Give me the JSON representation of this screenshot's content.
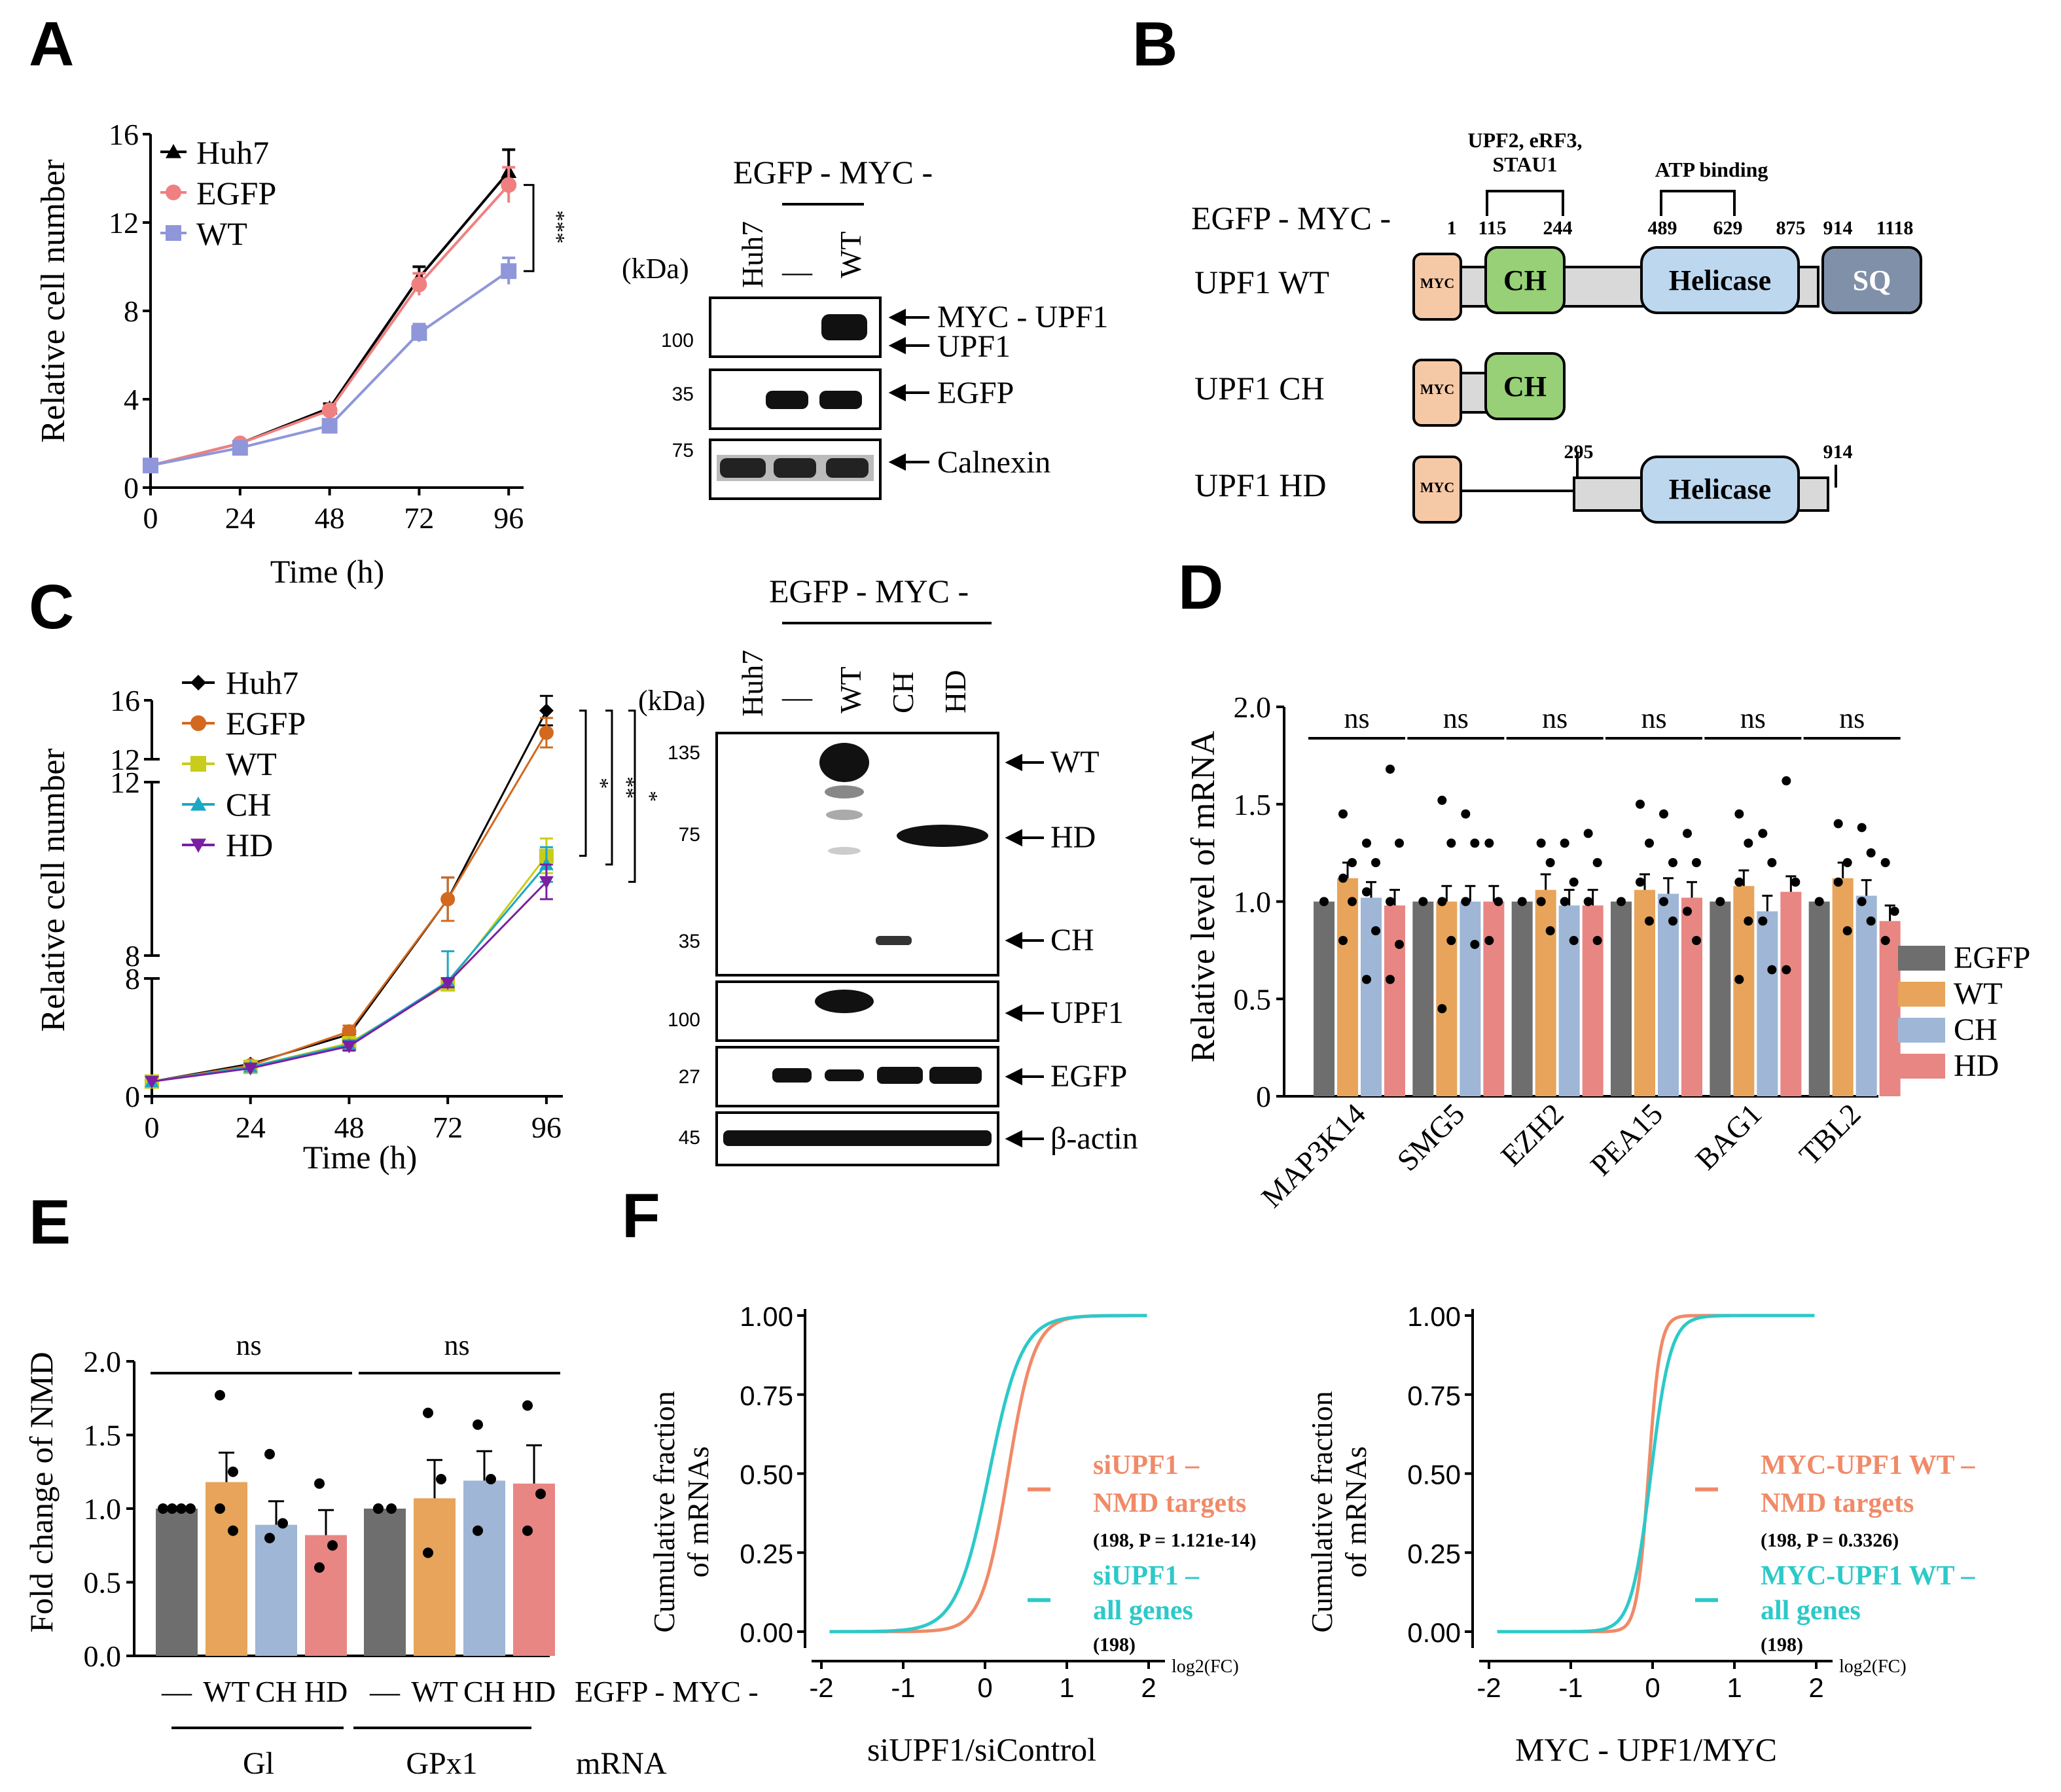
{
  "figure": {
    "panel_labels": [
      "A",
      "B",
      "C",
      "D",
      "E",
      "F"
    ]
  },
  "colors": {
    "huh7": "#000000",
    "egfp_a": "#f08080",
    "wt_a": "#8f96d9",
    "egfp_c": "#d2691e",
    "wt_c": "#c8cc1a",
    "ch_c": "#1ba8c4",
    "hd_c": "#7b1fa2",
    "bar_egfp": "#6e6e6e",
    "bar_wt": "#e7a45a",
    "bar_ch": "#9fb6d6",
    "bar_hd": "#e88683",
    "myc": "#f6c9a6",
    "ch_domain": "#97d077",
    "helicase": "#bdd7ee",
    "sq": "#8090a8",
    "salmon": "#f08a68",
    "cyan": "#2cc9c9"
  },
  "panelA": {
    "blot": {
      "header": "EGFP - MYC -",
      "lanes": [
        "Huh7",
        "—",
        "WT"
      ],
      "kda_label": "(kDa)",
      "rows": [
        {
          "marker": "100",
          "labels": [
            "MYC - UPF1",
            "UPF1"
          ]
        },
        {
          "marker": "35",
          "labels": [
            "EGFP"
          ]
        },
        {
          "marker": "75",
          "labels": [
            "Calnexin"
          ]
        }
      ]
    }
  },
  "panelB": {
    "construct_prefix": "EGFP - MYC -",
    "bracket1": "UPF2, eRF3,",
    "bracket1b": "STAU1",
    "bracket2": "ATP binding",
    "positions": [
      "1",
      "115",
      "244",
      "489",
      "629",
      "875",
      "914",
      "1118"
    ],
    "hd_positions": [
      "295",
      "914"
    ],
    "constructs": [
      "UPF1 WT",
      "UPF1 CH",
      "UPF1 HD"
    ],
    "domains": {
      "myc": "MYC",
      "ch": "CH",
      "helicase": "Helicase",
      "sq": "SQ"
    }
  },
  "panelC": {
    "blot": {
      "header": "EGFP - MYC -",
      "lanes": [
        "Huh7",
        "—",
        "WT",
        "CH",
        "HD"
      ],
      "kda_label": "(kDa)",
      "markers": [
        "135",
        "75",
        "35",
        "100",
        "27",
        "45"
      ],
      "labels": [
        "WT",
        "HD",
        "CH",
        "UPF1",
        "EGFP",
        "β-actin"
      ]
    }
  },
  "panelE": {
    "row_label": "EGFP - MYC -",
    "groups": [
      "Gl",
      "GPx1"
    ],
    "mrna_label": "mRNA",
    "lane_labels": [
      "—",
      "WT",
      "CH",
      "HD",
      "—",
      "WT",
      "CH",
      "HD"
    ]
  },
  "chart_data": [
    {
      "id": "A",
      "type": "line",
      "ylabel": "Relative cell number",
      "xlabel": "Time (h)",
      "x": [
        0,
        24,
        48,
        72,
        96
      ],
      "xlim": [
        0,
        100
      ],
      "ylim": [
        0,
        16
      ],
      "yticks": [
        0,
        4,
        8,
        12,
        16
      ],
      "series": [
        {
          "name": "Huh7",
          "values": [
            1.0,
            2.0,
            3.6,
            9.5,
            14.3
          ],
          "err": [
            0.1,
            0.1,
            0.2,
            0.5,
            1.0
          ]
        },
        {
          "name": "EGFP",
          "values": [
            1.0,
            2.0,
            3.5,
            9.2,
            13.7
          ],
          "err": [
            0.1,
            0.1,
            0.2,
            0.5,
            0.8
          ]
        },
        {
          "name": "WT",
          "values": [
            1.0,
            1.8,
            2.8,
            7.0,
            9.8
          ],
          "err": [
            0.1,
            0.1,
            0.2,
            0.4,
            0.6
          ]
        }
      ],
      "significance": "***"
    },
    {
      "id": "C",
      "type": "line",
      "ylabel": "Relative cell number",
      "xlabel": "Time (h)",
      "x": [
        0,
        24,
        48,
        72,
        96
      ],
      "axis_break": true,
      "lower_ticks": [
        0,
        8
      ],
      "upper_ticks": [
        8,
        12
      ],
      "top_ticks": [
        12,
        16
      ],
      "series": [
        {
          "name": "Huh7",
          "values": [
            1.0,
            2.2,
            4.2,
            9.3,
            15.3
          ],
          "err": [
            0.1,
            0.1,
            0.4,
            0.5,
            1.0
          ]
        },
        {
          "name": "EGFP",
          "values": [
            1.0,
            2.1,
            4.4,
            9.3,
            13.8
          ],
          "err": [
            0.1,
            0.1,
            0.4,
            0.5,
            1.0
          ]
        },
        {
          "name": "WT",
          "values": [
            1.0,
            2.0,
            3.6,
            7.6,
            10.3
          ],
          "err": [
            0.1,
            0.1,
            0.3,
            0.3,
            0.4
          ]
        },
        {
          "name": "CH",
          "values": [
            1.0,
            2.0,
            3.5,
            7.8,
            10.1
          ],
          "err": [
            0.1,
            0.1,
            0.3,
            0.3,
            0.4
          ]
        },
        {
          "name": "HD",
          "values": [
            1.0,
            1.9,
            3.4,
            7.7,
            9.7
          ],
          "err": [
            0.1,
            0.1,
            0.3,
            0.3,
            0.4
          ]
        }
      ],
      "significance": [
        "*",
        "**",
        "*"
      ]
    },
    {
      "id": "D",
      "type": "bar",
      "ylabel": "Relative level of mRNA",
      "categories": [
        "MAP3K14",
        "SMG5",
        "EZH2",
        "PEA15",
        "BAG1",
        "TBL2"
      ],
      "ylim": [
        0,
        2.0
      ],
      "yticks": [
        "0",
        "0.5",
        "1.0",
        "1.5",
        "2.0"
      ],
      "series": [
        {
          "name": "EGFP",
          "values": [
            1.0,
            1.0,
            1.0,
            1.0,
            1.0,
            1.0
          ]
        },
        {
          "name": "WT",
          "values": [
            1.12,
            1.0,
            1.06,
            1.06,
            1.08,
            1.12
          ]
        },
        {
          "name": "CH",
          "values": [
            1.02,
            1.0,
            0.98,
            1.04,
            0.95,
            1.03
          ]
        },
        {
          "name": "HD",
          "values": [
            0.98,
            1.0,
            0.98,
            1.02,
            1.05,
            0.9
          ]
        }
      ],
      "points": [
        [
          [
            1.0
          ],
          [
            1.45,
            1.2,
            1.12,
            1.0,
            0.8
          ],
          [
            1.3,
            1.2,
            1.05,
            0.85,
            0.6
          ],
          [
            1.68,
            1.3,
            1.0,
            0.78,
            0.6
          ]
        ],
        [
          [
            1.0
          ],
          [
            1.52,
            1.3,
            1.0,
            0.8,
            0.45
          ],
          [
            1.45,
            1.3,
            1.0,
            0.78
          ],
          [
            1.3,
            1.0,
            0.8
          ]
        ],
        [
          [
            1.0
          ],
          [
            1.3,
            1.2,
            1.0,
            0.85
          ],
          [
            1.3,
            1.1,
            1.0,
            0.8
          ],
          [
            1.35,
            1.2,
            1.0,
            0.8
          ]
        ],
        [
          [
            1.0
          ],
          [
            1.5,
            1.3,
            1.1,
            0.9
          ],
          [
            1.45,
            1.2,
            1.0,
            0.9
          ],
          [
            1.35,
            1.2,
            0.95,
            0.8
          ]
        ],
        [
          [
            1.0
          ],
          [
            1.45,
            1.3,
            1.1,
            0.9,
            0.6
          ],
          [
            1.35,
            1.2,
            0.9,
            0.65
          ],
          [
            1.62,
            1.1,
            0.65
          ]
        ],
        [
          [
            1.0
          ],
          [
            1.4,
            1.2,
            1.1,
            0.85
          ],
          [
            1.38,
            1.25,
            1.0,
            0.9
          ],
          [
            1.2,
            0.95,
            0.8
          ]
        ]
      ],
      "significance": [
        "ns",
        "ns",
        "ns",
        "ns",
        "ns",
        "ns"
      ],
      "legend": [
        "EGFP",
        "WT",
        "CH",
        "HD"
      ]
    },
    {
      "id": "E",
      "type": "bar",
      "ylabel": "Fold change of NMD",
      "categories": [
        "Gl",
        "GPx1"
      ],
      "ylim": [
        0,
        2.0
      ],
      "yticks": [
        "0.0",
        "0.5",
        "1.0",
        "1.5",
        "2.0"
      ],
      "series": [
        {
          "name": "—",
          "values": [
            1.0,
            1.0
          ]
        },
        {
          "name": "WT",
          "values": [
            1.18,
            1.07
          ]
        },
        {
          "name": "CH",
          "values": [
            0.89,
            1.19
          ]
        },
        {
          "name": "HD",
          "values": [
            0.82,
            1.17
          ]
        }
      ],
      "errors": [
        [
          0,
          0.2,
          0.16,
          0.17
        ],
        [
          0,
          0.26,
          0.2,
          0.26
        ]
      ],
      "points": [
        [
          [
            1.0,
            1.0,
            1.0,
            1.0
          ],
          [
            1.77,
            1.25,
            1.0,
            0.85
          ],
          [
            1.37,
            0.9,
            0.8
          ],
          [
            1.17,
            0.75,
            0.6
          ]
        ],
        [
          [
            1.0,
            1.0,
            1.0
          ],
          [
            1.65,
            1.2,
            0.7
          ],
          [
            1.57,
            1.2,
            0.85
          ],
          [
            1.7,
            1.1,
            0.85
          ]
        ]
      ],
      "significance": [
        "ns",
        "ns"
      ]
    },
    {
      "id": "F-left",
      "type": "line",
      "ylabel_1": "Cumulative fraction",
      "ylabel_2": "of mRNAs",
      "xlabel": "siUPF1/siControl",
      "x_unit": "log2(FC)",
      "xlim": [
        -2.2,
        2.2
      ],
      "xticks": [
        "-2",
        "-1",
        "0",
        "1",
        "2"
      ],
      "yticks": [
        "0.00",
        "0.25",
        "0.50",
        "0.75",
        "1.00"
      ],
      "series": [
        {
          "name": "siUPF1 – NMD targets",
          "median": 0.28,
          "scale": 0.16
        },
        {
          "name": "siUPF1 – all genes",
          "median": 0.05,
          "scale": 0.2
        }
      ],
      "legend_1a": "siUPF1 –",
      "legend_1b": "NMD targets",
      "legend_1c": "(198, P = 1.121e-14)",
      "legend_2a": "siUPF1 –",
      "legend_2b": "all genes",
      "legend_2c": "(198)"
    },
    {
      "id": "F-right",
      "type": "line",
      "ylabel_1": "Cumulative fraction",
      "ylabel_2": "of mRNAs",
      "xlabel": "MYC - UPF1/MYC",
      "x_unit": "log2(FC)",
      "xlim": [
        -2.2,
        2.2
      ],
      "xticks": [
        "-2",
        "-1",
        "0",
        "1",
        "2"
      ],
      "yticks": [
        "0.00",
        "0.25",
        "0.50",
        "0.75",
        "1.00"
      ],
      "series": [
        {
          "name": "MYC-UPF1 WT – NMD targets",
          "median": -0.05,
          "scale": 0.07
        },
        {
          "name": "MYC-UPF1 WT – all genes",
          "median": -0.02,
          "scale": 0.12
        }
      ],
      "legend_1a": "MYC-UPF1 WT –",
      "legend_1b": "NMD targets",
      "legend_1c": "(198, P = 0.3326)",
      "legend_2a": "MYC-UPF1 WT –",
      "legend_2b": "all genes",
      "legend_2c": "(198)"
    }
  ]
}
